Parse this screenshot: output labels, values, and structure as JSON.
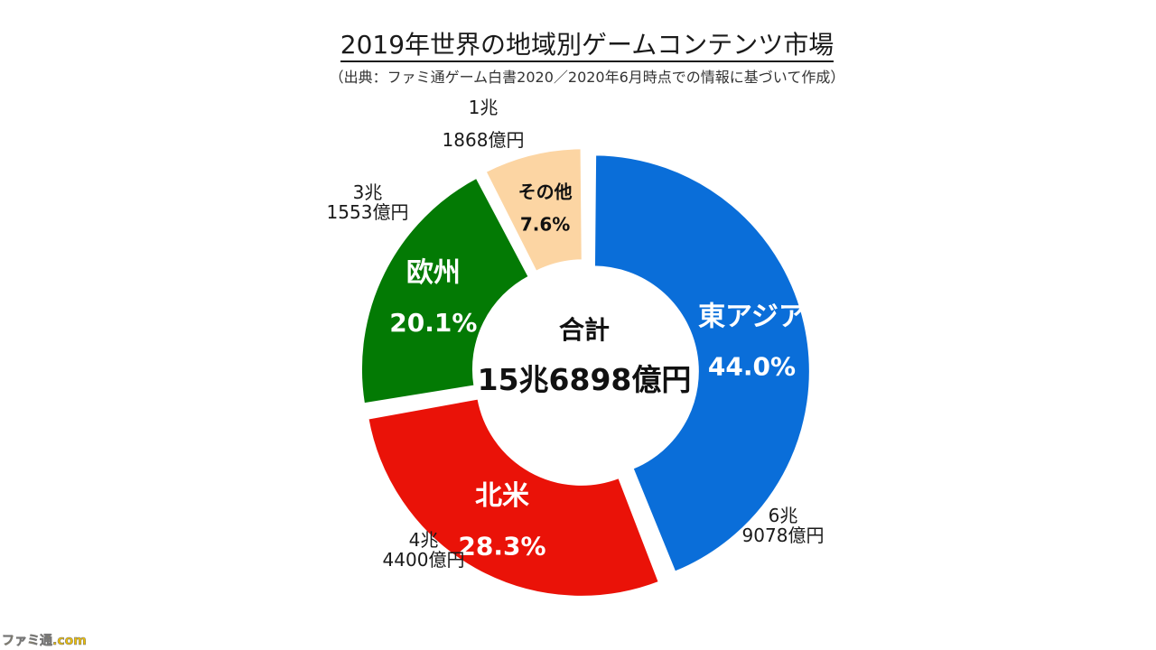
{
  "title": "2019年世界の地域別ゲームコンテンツ市場",
  "subtitle": "（出典：ファミ通ゲーム白書2020／2020年6月時点での情報に基づいて作成）",
  "watermark": "ファミ通.com",
  "chart_data": {
    "type": "pie",
    "variant": "donut",
    "center_label": "合計",
    "center_value": "15兆6898億円",
    "slices": [
      {
        "name": "東アジア",
        "percent": 44.0,
        "percent_label": "44.0%",
        "amount_line1": "6兆",
        "amount_line2": "9078億円",
        "color": "#0a6ed9"
      },
      {
        "name": "北米",
        "percent": 28.3,
        "percent_label": "28.3%",
        "amount_line1": "4兆",
        "amount_line2": "4400億円",
        "color": "#ea1208"
      },
      {
        "name": "欧州",
        "percent": 20.1,
        "percent_label": "20.1%",
        "amount_line1": "3兆",
        "amount_line2": "1553億円",
        "color": "#037a04"
      },
      {
        "name": "その他",
        "percent": 7.6,
        "percent_label": "7.6%",
        "amount_line1": "1兆",
        "amount_line2": "1868億円",
        "color": "#fcd5a3"
      }
    ]
  }
}
